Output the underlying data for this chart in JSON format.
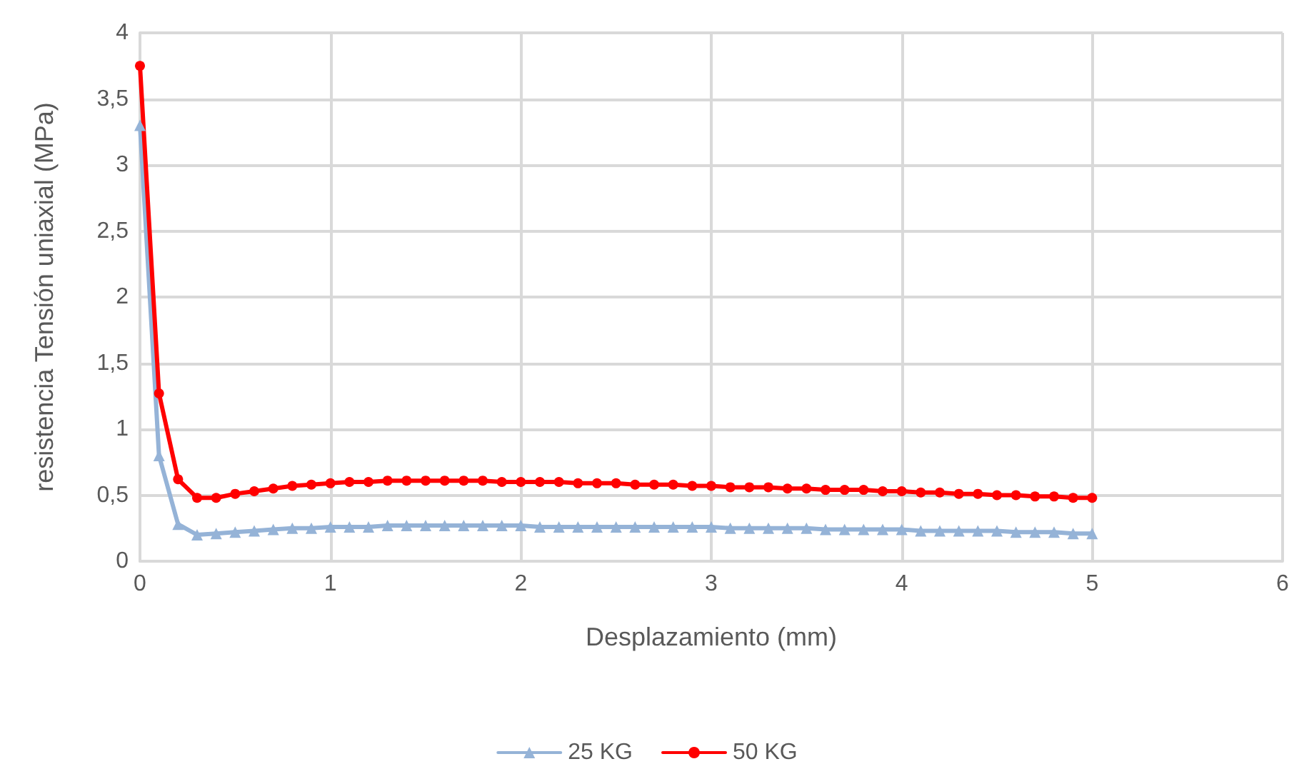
{
  "chart_data": {
    "type": "line",
    "xlabel": "Desplazamiento (mm)",
    "ylabel": "resistencia Tensión uniaxial (MPa)",
    "x": [
      0,
      0.1,
      0.2,
      0.3,
      0.4,
      0.5,
      0.6,
      0.7,
      0.8,
      0.9,
      1,
      1.1,
      1.2,
      1.3,
      1.4,
      1.5,
      1.6,
      1.7,
      1.8,
      1.9,
      2,
      2.1,
      2.2,
      2.3,
      2.4,
      2.5,
      2.6,
      2.7,
      2.8,
      2.9,
      3,
      3.1,
      3.2,
      3.3,
      3.4,
      3.5,
      3.6,
      3.7,
      3.8,
      3.9,
      4,
      4.1,
      4.2,
      4.3,
      4.4,
      4.5,
      4.6,
      4.7,
      4.8,
      4.9,
      5
    ],
    "series": [
      {
        "name": "25 KG",
        "color": "#95b3d7",
        "marker": "triangle",
        "values": [
          3.3,
          0.8,
          0.28,
          0.2,
          0.21,
          0.22,
          0.23,
          0.24,
          0.25,
          0.25,
          0.26,
          0.26,
          0.26,
          0.27,
          0.27,
          0.27,
          0.27,
          0.27,
          0.27,
          0.27,
          0.27,
          0.26,
          0.26,
          0.26,
          0.26,
          0.26,
          0.26,
          0.26,
          0.26,
          0.26,
          0.26,
          0.25,
          0.25,
          0.25,
          0.25,
          0.25,
          0.24,
          0.24,
          0.24,
          0.24,
          0.24,
          0.23,
          0.23,
          0.23,
          0.23,
          0.23,
          0.22,
          0.22,
          0.22,
          0.21,
          0.21
        ]
      },
      {
        "name": "50 KG",
        "color": "#ff0000",
        "marker": "circle",
        "values": [
          3.75,
          1.27,
          0.62,
          0.48,
          0.48,
          0.51,
          0.53,
          0.55,
          0.57,
          0.58,
          0.59,
          0.6,
          0.6,
          0.61,
          0.61,
          0.61,
          0.61,
          0.61,
          0.61,
          0.6,
          0.6,
          0.6,
          0.6,
          0.59,
          0.59,
          0.59,
          0.58,
          0.58,
          0.58,
          0.57,
          0.57,
          0.56,
          0.56,
          0.56,
          0.55,
          0.55,
          0.54,
          0.54,
          0.54,
          0.53,
          0.53,
          0.52,
          0.52,
          0.51,
          0.51,
          0.5,
          0.5,
          0.49,
          0.49,
          0.48,
          0.48
        ]
      }
    ],
    "xlim": [
      0,
      6
    ],
    "xticks": [
      0,
      1,
      2,
      3,
      4,
      5,
      6
    ],
    "ylim": [
      0,
      4
    ],
    "yticks": [
      0,
      {
        "value": 0.5,
        "label": "0,5"
      },
      1,
      {
        "value": 1.5,
        "label": "1,5"
      },
      2,
      {
        "value": 2.5,
        "label": "2,5"
      },
      3,
      {
        "value": 3.5,
        "label": "3,5"
      },
      4
    ],
    "grid": true,
    "legend": "bottom",
    "line_style": "solid"
  }
}
